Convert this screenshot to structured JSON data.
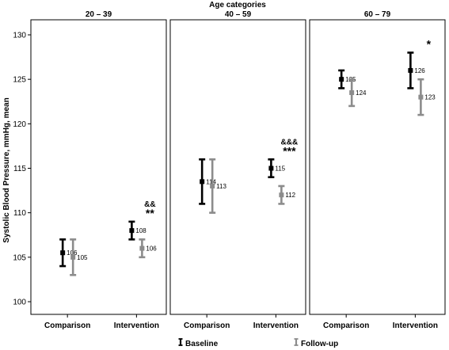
{
  "chart_data": {
    "type": "error-bar",
    "supertitle": "Age categories",
    "ylabel": "Systolic Blood Pressure, mmHg, mean",
    "ylim": [
      100,
      130
    ],
    "yticks": [
      100,
      105,
      110,
      115,
      120,
      125,
      130
    ],
    "categories": [
      "Comparison",
      "Intervention"
    ],
    "panels": [
      {
        "title": "20 – 39",
        "groups": [
          {
            "category": "Comparison",
            "baseline": {
              "mean": 105.5,
              "low": 104,
              "high": 107,
              "label": "106"
            },
            "followup": {
              "mean": 105,
              "low": 103,
              "high": 107,
              "label": "105"
            },
            "annotations": []
          },
          {
            "category": "Intervention",
            "baseline": {
              "mean": 108,
              "low": 107,
              "high": 109,
              "label": "108"
            },
            "followup": {
              "mean": 106,
              "low": 105,
              "high": 107,
              "label": "106"
            },
            "annotations": [
              "&&",
              "**"
            ]
          }
        ]
      },
      {
        "title": "40 – 59",
        "groups": [
          {
            "category": "Comparison",
            "baseline": {
              "mean": 113.5,
              "low": 111,
              "high": 116,
              "label": "114"
            },
            "followup": {
              "mean": 113,
              "low": 110,
              "high": 116,
              "label": "113"
            },
            "annotations": []
          },
          {
            "category": "Intervention",
            "baseline": {
              "mean": 115,
              "low": 114,
              "high": 116,
              "label": "115"
            },
            "followup": {
              "mean": 112,
              "low": 111,
              "high": 113,
              "label": "112"
            },
            "annotations": [
              "&&&",
              "***"
            ]
          }
        ]
      },
      {
        "title": "60 – 79",
        "groups": [
          {
            "category": "Comparison",
            "baseline": {
              "mean": 125,
              "low": 124,
              "high": 126,
              "label": "125"
            },
            "followup": {
              "mean": 123.5,
              "low": 122,
              "high": 125,
              "label": "124"
            },
            "annotations": []
          },
          {
            "category": "Intervention",
            "baseline": {
              "mean": 126,
              "low": 124,
              "high": 128,
              "label": "126"
            },
            "followup": {
              "mean": 123,
              "low": 121,
              "high": 125,
              "label": "123"
            },
            "annotations": [
              "*"
            ]
          }
        ]
      }
    ],
    "legend": {
      "placement": "bottom",
      "entries": [
        {
          "key": "baseline",
          "label": "Baseline",
          "color": "#000000"
        },
        {
          "key": "followup",
          "label": "Follow-up",
          "color": "#8c8c8c"
        }
      ]
    },
    "grid": false
  }
}
